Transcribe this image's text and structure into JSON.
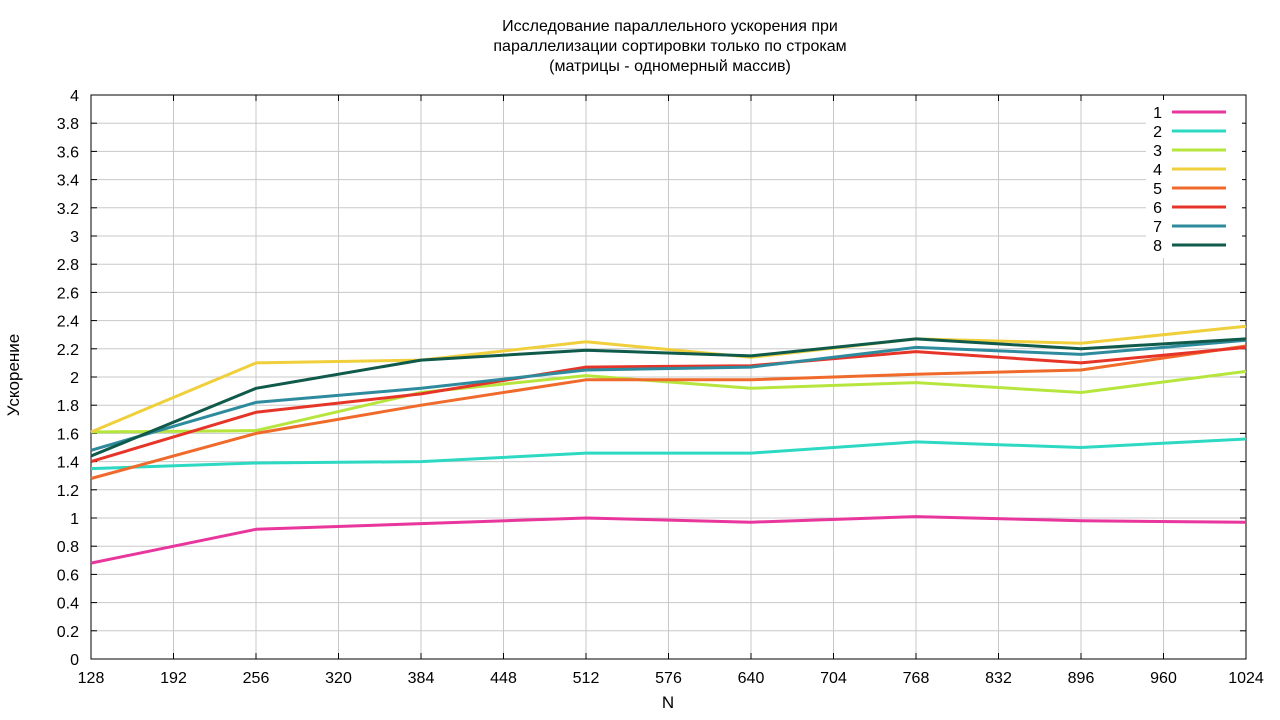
{
  "chart_data": {
    "type": "line",
    "title": [
      "Исследование параллельного ускорения при",
      "параллелизации сортировки только по строкам",
      "(матрицы - одномерный массив)"
    ],
    "xlabel": "N",
    "ylabel": "Ускорение",
    "xlim": [
      128,
      1024
    ],
    "ylim": [
      0,
      4
    ],
    "xticks": [
      128,
      192,
      256,
      320,
      384,
      448,
      512,
      576,
      640,
      704,
      768,
      832,
      896,
      960,
      1024
    ],
    "yticks": [
      0,
      0.2,
      0.4,
      0.6,
      0.8,
      1,
      1.2,
      1.4,
      1.6,
      1.8,
      2,
      2.2,
      2.4,
      2.6,
      2.8,
      3,
      3.2,
      3.4,
      3.6,
      3.8,
      4
    ],
    "ytick_labels": [
      "0",
      "0.2",
      "0.4",
      "0.6",
      "0.8",
      "1",
      "1.2",
      "1.4",
      "1.6",
      "1.8",
      "2",
      "2.2",
      "2.4",
      "2.6",
      "2.8",
      "3",
      "3.2",
      "3.4",
      "3.6",
      "3.8",
      "4"
    ],
    "grid": true,
    "legend_position": "top-right",
    "x": [
      128,
      256,
      384,
      512,
      640,
      768,
      896,
      1024
    ],
    "series": [
      {
        "name": "1",
        "color": "#e8369d",
        "values": [
          0.68,
          0.92,
          0.96,
          1.0,
          0.97,
          1.01,
          0.98,
          0.97
        ]
      },
      {
        "name": "2",
        "color": "#2ed9c3",
        "values": [
          1.35,
          1.39,
          1.4,
          1.46,
          1.46,
          1.54,
          1.5,
          1.56
        ]
      },
      {
        "name": "3",
        "color": "#b6e63e",
        "values": [
          1.61,
          1.62,
          1.89,
          2.01,
          1.92,
          1.96,
          1.89,
          2.04
        ]
      },
      {
        "name": "4",
        "color": "#f0cf3c",
        "values": [
          1.61,
          2.1,
          2.12,
          2.25,
          2.14,
          2.27,
          2.24,
          2.36
        ]
      },
      {
        "name": "5",
        "color": "#f06b2b",
        "values": [
          1.28,
          1.6,
          1.8,
          1.98,
          1.98,
          2.02,
          2.05,
          2.22
        ]
      },
      {
        "name": "6",
        "color": "#e63528",
        "values": [
          1.4,
          1.75,
          1.88,
          2.07,
          2.08,
          2.18,
          2.1,
          2.21
        ]
      },
      {
        "name": "7",
        "color": "#2e8b9e",
        "values": [
          1.48,
          1.82,
          1.92,
          2.05,
          2.07,
          2.21,
          2.16,
          2.26
        ]
      },
      {
        "name": "8",
        "color": "#0f5a4a",
        "values": [
          1.44,
          1.92,
          2.12,
          2.19,
          2.15,
          2.27,
          2.2,
          2.27
        ]
      }
    ]
  }
}
